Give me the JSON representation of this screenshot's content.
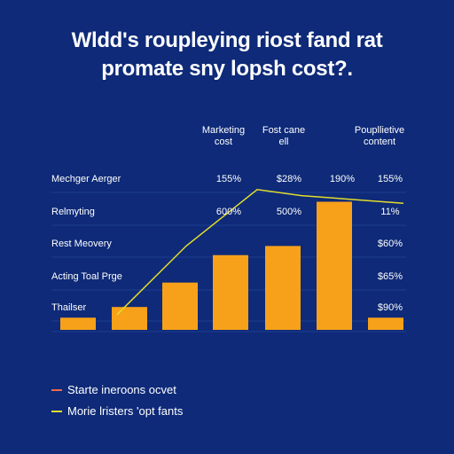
{
  "title_lines": [
    "Wldd's roupleying riost fand rat",
    "promate sny lopsh cost?."
  ],
  "colors": {
    "background": "#0e2a78",
    "bar": "#f7a11a",
    "line": "#e2dd2a",
    "gridline": "#1f3f8f",
    "legend_red": "#f06a4a",
    "legend_yellow": "#e2dd2a"
  },
  "chart_data": {
    "type": "bar",
    "columns": [
      {
        "header": [
          "Marketing",
          "cost"
        ]
      },
      {
        "header": [
          "Fost cane",
          "ell"
        ]
      },
      {
        "header": []
      },
      {
        "header": [
          "Poupllietive",
          "content"
        ]
      }
    ],
    "rows": [
      {
        "label": "Mechger Aerger",
        "cells": [
          "155%",
          "$28%",
          "190%",
          "155%"
        ]
      },
      {
        "label": "Relmyting",
        "cells": [
          "600%",
          "500%",
          "",
          "11%"
        ]
      },
      {
        "label": "Rest Meovery",
        "cells": [
          "",
          "",
          "",
          "$60%"
        ]
      },
      {
        "label": "Acting Toal Prge",
        "cells": [
          "",
          "",
          "",
          "$65%"
        ]
      },
      {
        "label": "Thailser",
        "cells": [
          "",
          "",
          "",
          "$90%"
        ]
      }
    ],
    "bars": [
      {
        "value": 8
      },
      {
        "value": 15
      },
      {
        "value": 31
      },
      {
        "value": 49
      },
      {
        "value": 55
      },
      {
        "value": 84
      },
      {
        "value": 8
      }
    ],
    "line": {
      "values": [
        10,
        55,
        92,
        88,
        83
      ]
    },
    "ylim": [
      0,
      100
    ],
    "legend": [
      {
        "label": "Starte ineroons ocvet",
        "color": "#f06a4a"
      },
      {
        "label": "Morie lristers 'opt fants",
        "color": "#e2dd2a"
      }
    ]
  }
}
